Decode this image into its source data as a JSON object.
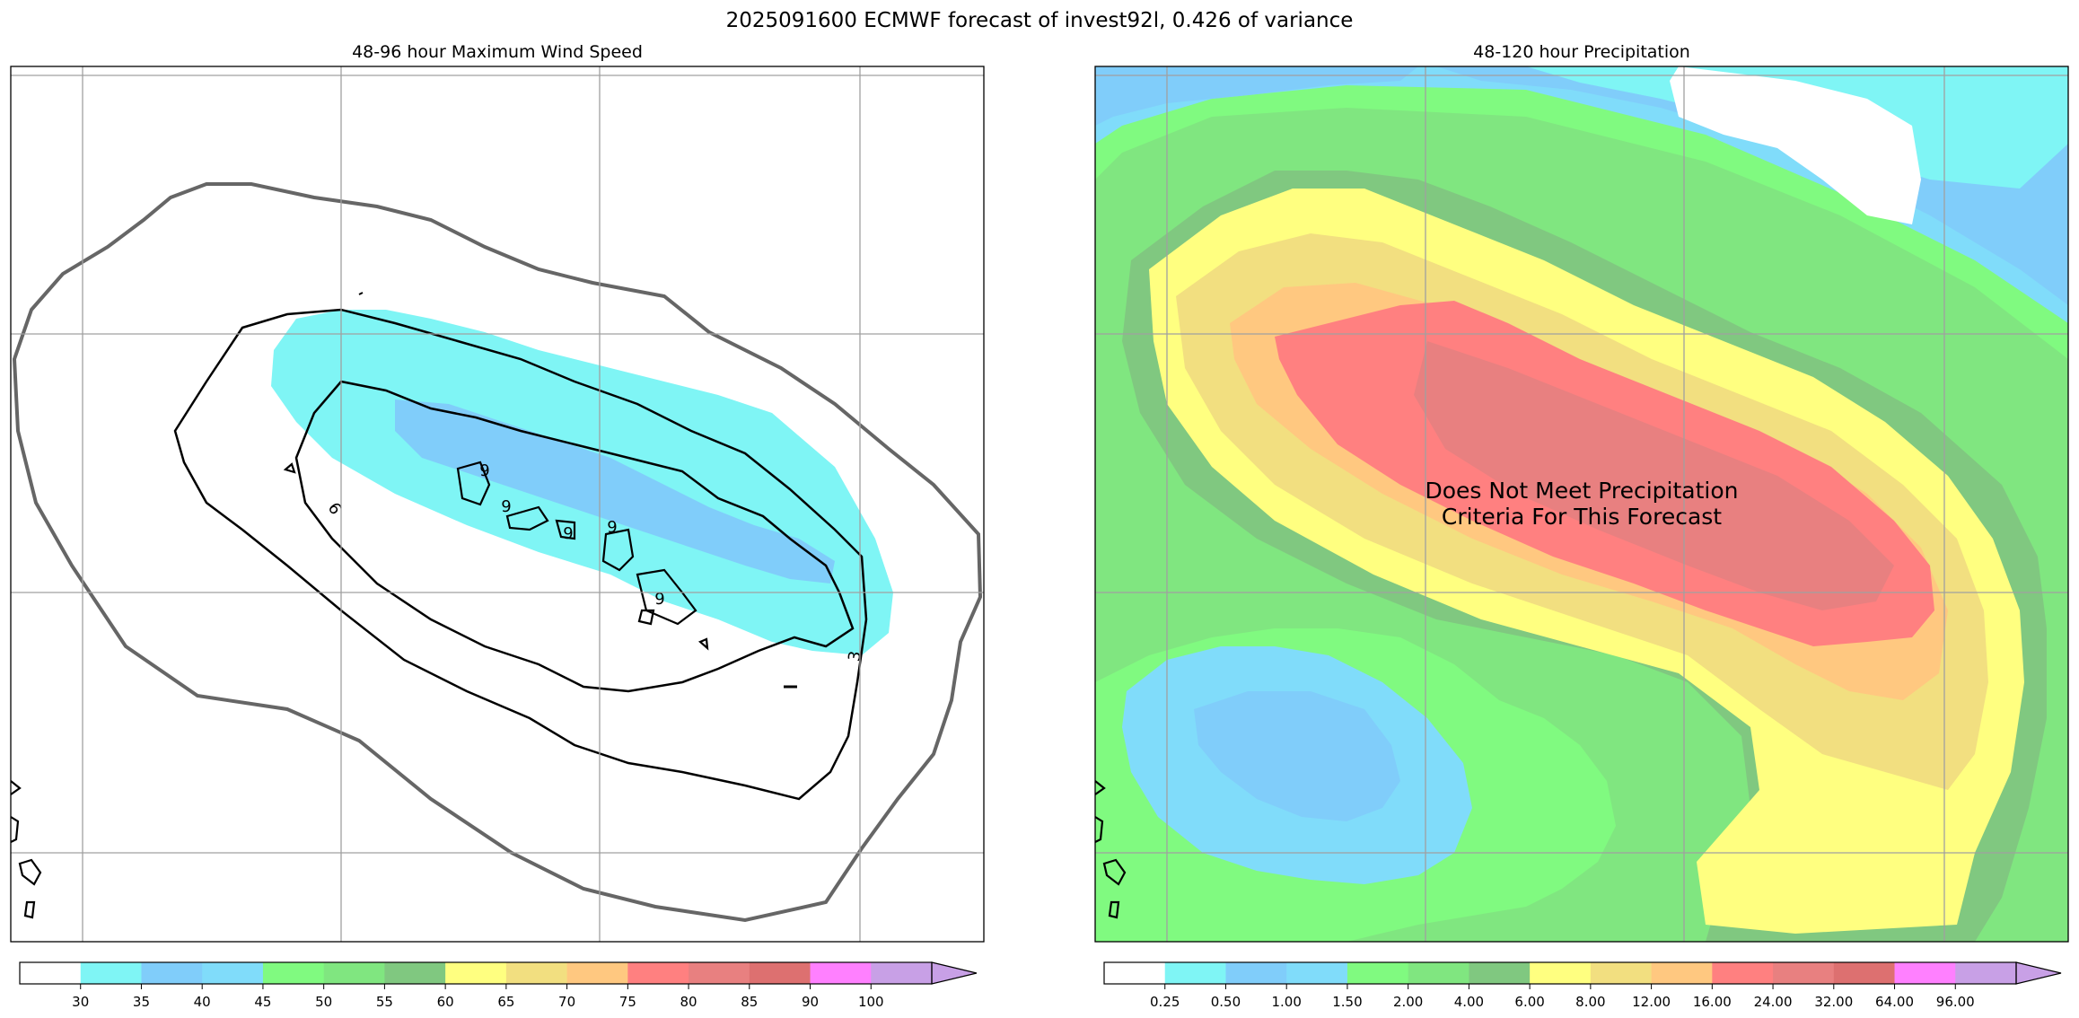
{
  "suptitle": "2025091600 ECMWF forecast of invest92l, 0.426 of variance",
  "chart_data": [
    {
      "type": "heatmap",
      "title": "48-96 hour Maximum Wind Speed",
      "variable": "maximum wind speed",
      "colorbar": {
        "ticks": [
          "30",
          "35",
          "40",
          "45",
          "50",
          "55",
          "60",
          "65",
          "70",
          "75",
          "80",
          "85",
          "90",
          "100"
        ],
        "colors": [
          "#ffffff",
          "#7ff5f5",
          "#80cdfa",
          "#80dcfa",
          "#80fa80",
          "#80e680",
          "#80c880",
          "#ffff80",
          "#f2df80",
          "#ffc880",
          "#ff8080",
          "#e88080",
          "#dd7070",
          "#ff80ff",
          "#c8a0e6"
        ],
        "extend": "max"
      },
      "shaded_levels_present": [
        "30-35",
        "35-40"
      ],
      "contour_labels": [
        "3",
        "6",
        "9",
        "9",
        "9",
        "9",
        "9"
      ],
      "grid": true
    },
    {
      "type": "heatmap",
      "title": "48-120 hour Precipitation",
      "variable": "precipitation",
      "annotation": "Does Not Meet Precipitation\nCriteria For This Forecast",
      "colorbar": {
        "ticks": [
          "0.25",
          "0.50",
          "1.00",
          "1.50",
          "2.00",
          "4.00",
          "6.00",
          "8.00",
          "12.00",
          "16.00",
          "24.00",
          "32.00",
          "64.00",
          "96.00"
        ],
        "colors": [
          "#ffffff",
          "#7ff5f5",
          "#80cdfa",
          "#80dcfa",
          "#80fa80",
          "#80e680",
          "#80c880",
          "#ffff80",
          "#f2df80",
          "#ffc880",
          "#ff8080",
          "#e88080",
          "#dd7070",
          "#ff80ff",
          "#c8a0e6"
        ],
        "extend": "max"
      },
      "shaded_levels_present": [
        "0.50-1.00",
        "1.00-1.50",
        "1.50-2.00",
        "2.00-4.00",
        "4.00-6.00",
        "6.00-8.00",
        "8.00-12.00",
        "12.00-16.00",
        "16.00-24.00",
        "24.00-32.00"
      ],
      "grid": true
    }
  ]
}
